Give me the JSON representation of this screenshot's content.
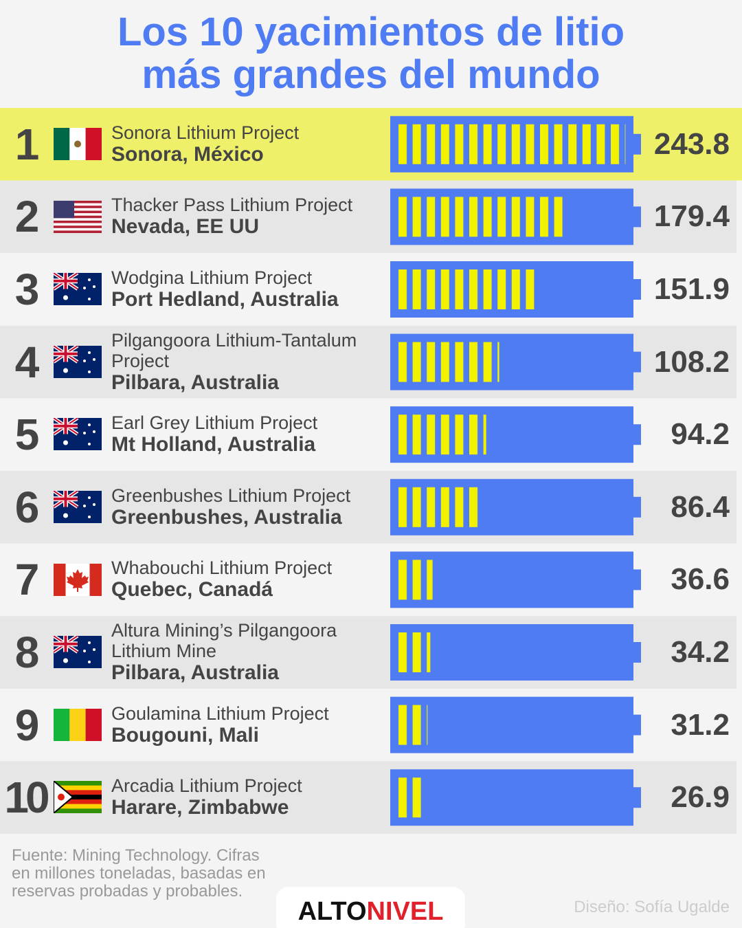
{
  "chart_data": {
    "type": "bar",
    "title": [
      "Los 10 yacimientos de litio",
      "más grandes del mundo"
    ],
    "ranks": [
      1,
      2,
      3,
      4,
      5,
      6,
      7,
      8,
      9,
      10
    ],
    "categories": [
      "Sonora Lithium Project",
      "Thacker Pass Lithium Project",
      "Wodgina Lithium Project",
      "Pilgangoora Lithium-Tantalum Project",
      "Earl Grey Lithium Project",
      "Greenbushes Lithium Project",
      "Whabouchi Lithium Project",
      "Altura Mining’s Pilgangoora Lithium Mine",
      "Goulamina Lithium Project",
      "Arcadia Lithium Project"
    ],
    "locations": [
      "Sonora, México",
      "Nevada, EE UU",
      "Port Hedland, Australia",
      "Pilbara, Australia",
      "Mt Holland, Australia",
      "Greenbushes, Australia",
      "Quebec, Canadá",
      "Pilbara, Australia",
      "Bougouni, Mali",
      "Harare, Zimbabwe"
    ],
    "values": [
      243.8,
      179.4,
      151.9,
      108.2,
      94.2,
      86.4,
      36.6,
      34.2,
      31.2,
      26.9
    ],
    "color": "#4f7cf2",
    "fill_color": "#f2f200",
    "highlight_color": "#eef06a"
  },
  "footer": {
    "source": "Fuente: Mining Technology. Cifras en millones toneladas, basadas en reservas probadas y probables.",
    "logo": [
      "ALTO",
      "NIVEL"
    ],
    "credit": "Diseño: Sofía Ugalde"
  }
}
